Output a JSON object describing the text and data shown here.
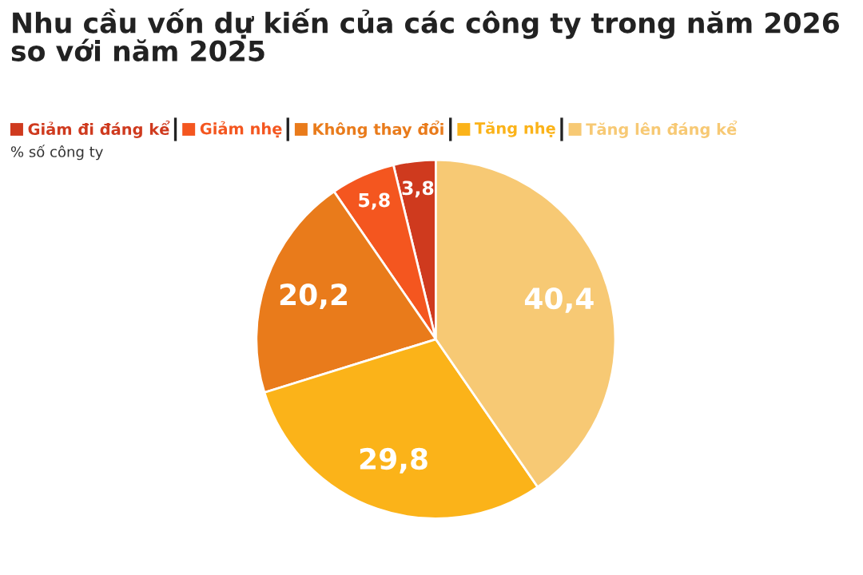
{
  "chart_data": {
    "type": "pie",
    "title": "Nhu cầu vốn dự kiến của các công ty trong năm 2026\nso với năm 2025",
    "categories": [
      "Giảm đi đáng kể",
      "Giảm nhẹ",
      "Không thay đổi",
      "Tăng nhẹ",
      "Tăng lên đáng kể"
    ],
    "values": [
      3.8,
      5.8,
      20.2,
      29.8,
      40.4
    ],
    "colors": [
      "#cf3a1e",
      "#f4561f",
      "#e97b1b",
      "#fbb319",
      "#f7c974"
    ],
    "value_labels": [
      "3,8",
      "5,8",
      "20,2",
      "29,8",
      "40,4"
    ],
    "annotations": [
      "% số công ty"
    ],
    "legend": "top left"
  }
}
